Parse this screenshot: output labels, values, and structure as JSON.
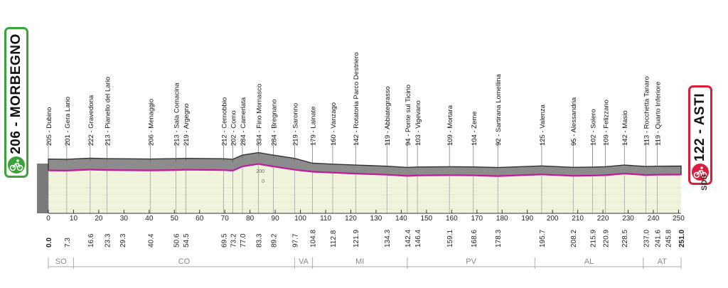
{
  "start": {
    "altitude": "206",
    "name": "MORBEGNO"
  },
  "finish": {
    "altitude": "122",
    "name": "ASTI"
  },
  "logo_text": "SDS",
  "colors": {
    "start": "#3aa335",
    "finish": "#d81e3a",
    "route": "#c2189a",
    "terrain": "#8c8c8c",
    "plot_fill": "#f1f4dc"
  },
  "chart_data": {
    "type": "area",
    "title": "",
    "xlabel": "",
    "ylabel": "",
    "xlim": [
      0,
      251
    ],
    "ylim": [
      0,
      400
    ],
    "x_ticks": [
      0,
      10,
      20,
      30,
      40,
      50,
      60,
      70,
      80,
      90,
      100,
      110,
      120,
      130,
      140,
      150,
      160,
      170,
      180,
      190,
      200,
      210,
      220,
      230,
      240,
      250
    ],
    "y_ticks": [
      {
        "value": 200,
        "label": "200"
      },
      {
        "value": 0,
        "label": "0"
      }
    ],
    "km_marks": [
      "0.0",
      "7.3",
      "16.6",
      "23.3",
      "29.3",
      "40.4",
      "50.6",
      "54.5",
      "69.5",
      "73.2",
      "77.0",
      "83.3",
      "89.2",
      "97.7",
      "104.8",
      "112.8",
      "121.9",
      "134.3",
      "142.4",
      "146.4",
      "159.1",
      "168.6",
      "178.3",
      "195.7",
      "208.2",
      "215.9",
      "220.9",
      "228.5",
      "237.0",
      "241.6",
      "245.8",
      "251.0"
    ],
    "waypoints": [
      {
        "km": 0.0,
        "alt": 205,
        "label": "205 - Dubino"
      },
      {
        "km": 7.3,
        "alt": 201,
        "label": "201 - Gera Lario"
      },
      {
        "km": 16.6,
        "alt": 222,
        "label": "222 - Gravedona"
      },
      {
        "km": 23.3,
        "alt": 213,
        "label": "213 - Pianello del Lario"
      },
      {
        "km": 40.4,
        "alt": 206,
        "label": "206 - Menaggio"
      },
      {
        "km": 50.6,
        "alt": 213,
        "label": "213 - Sala Comacina"
      },
      {
        "km": 54.5,
        "alt": 219,
        "label": "219 - Argegno"
      },
      {
        "km": 69.5,
        "alt": 212,
        "label": "212 - Cernobbio"
      },
      {
        "km": 73.2,
        "alt": 202,
        "label": "202 - Como"
      },
      {
        "km": 77.0,
        "alt": 284,
        "label": "284 - Camerlata"
      },
      {
        "km": 83.3,
        "alt": 334,
        "label": "334 - Fino Mornasco"
      },
      {
        "km": 89.2,
        "alt": 284,
        "label": "284 - Bregnano"
      },
      {
        "km": 97.7,
        "alt": 219,
        "label": "219 - Saronno"
      },
      {
        "km": 104.8,
        "alt": 179,
        "label": "179 - Lainate"
      },
      {
        "km": 112.8,
        "alt": 160,
        "label": "160 - Vanzago"
      },
      {
        "km": 121.9,
        "alt": 142,
        "label": "142 - Rotatoria Parco Destriero"
      },
      {
        "km": 134.3,
        "alt": 119,
        "label": "119 - Abbiategrasso"
      },
      {
        "km": 142.4,
        "alt": 94,
        "label": "94 - Ponte sul Ticino"
      },
      {
        "km": 146.4,
        "alt": 103,
        "label": "103 - Vigevano"
      },
      {
        "km": 159.1,
        "alt": 109,
        "label": "109 - Mortara"
      },
      {
        "km": 168.6,
        "alt": 104,
        "label": "104 - Zeme"
      },
      {
        "km": 178.3,
        "alt": 92,
        "label": "92 - Sartirana Lomellina"
      },
      {
        "km": 195.7,
        "alt": 125,
        "label": "125 - Valenza"
      },
      {
        "km": 208.2,
        "alt": 95,
        "label": "95 - Alessandria"
      },
      {
        "km": 215.9,
        "alt": 102,
        "label": "102 - Solero"
      },
      {
        "km": 220.9,
        "alt": 109,
        "label": "109 - Felizzano"
      },
      {
        "km": 228.5,
        "alt": 142,
        "label": "142 - Masio"
      },
      {
        "km": 237.0,
        "alt": 113,
        "label": "113 - Rocchetta Tanaro"
      },
      {
        "km": 241.6,
        "alt": 119,
        "label": "119 - Quarto Inferiore"
      }
    ],
    "provinces": [
      {
        "code": "SO",
        "from": 0,
        "to": 10
      },
      {
        "code": "CO",
        "from": 10,
        "to": 97.7
      },
      {
        "code": "VA",
        "from": 97.7,
        "to": 104.8
      },
      {
        "code": "MI",
        "from": 104.8,
        "to": 142.4
      },
      {
        "code": "PV",
        "from": 142.4,
        "to": 193
      },
      {
        "code": "AL",
        "from": 193,
        "to": 236
      },
      {
        "code": "AT",
        "from": 236,
        "to": 251
      }
    ]
  }
}
